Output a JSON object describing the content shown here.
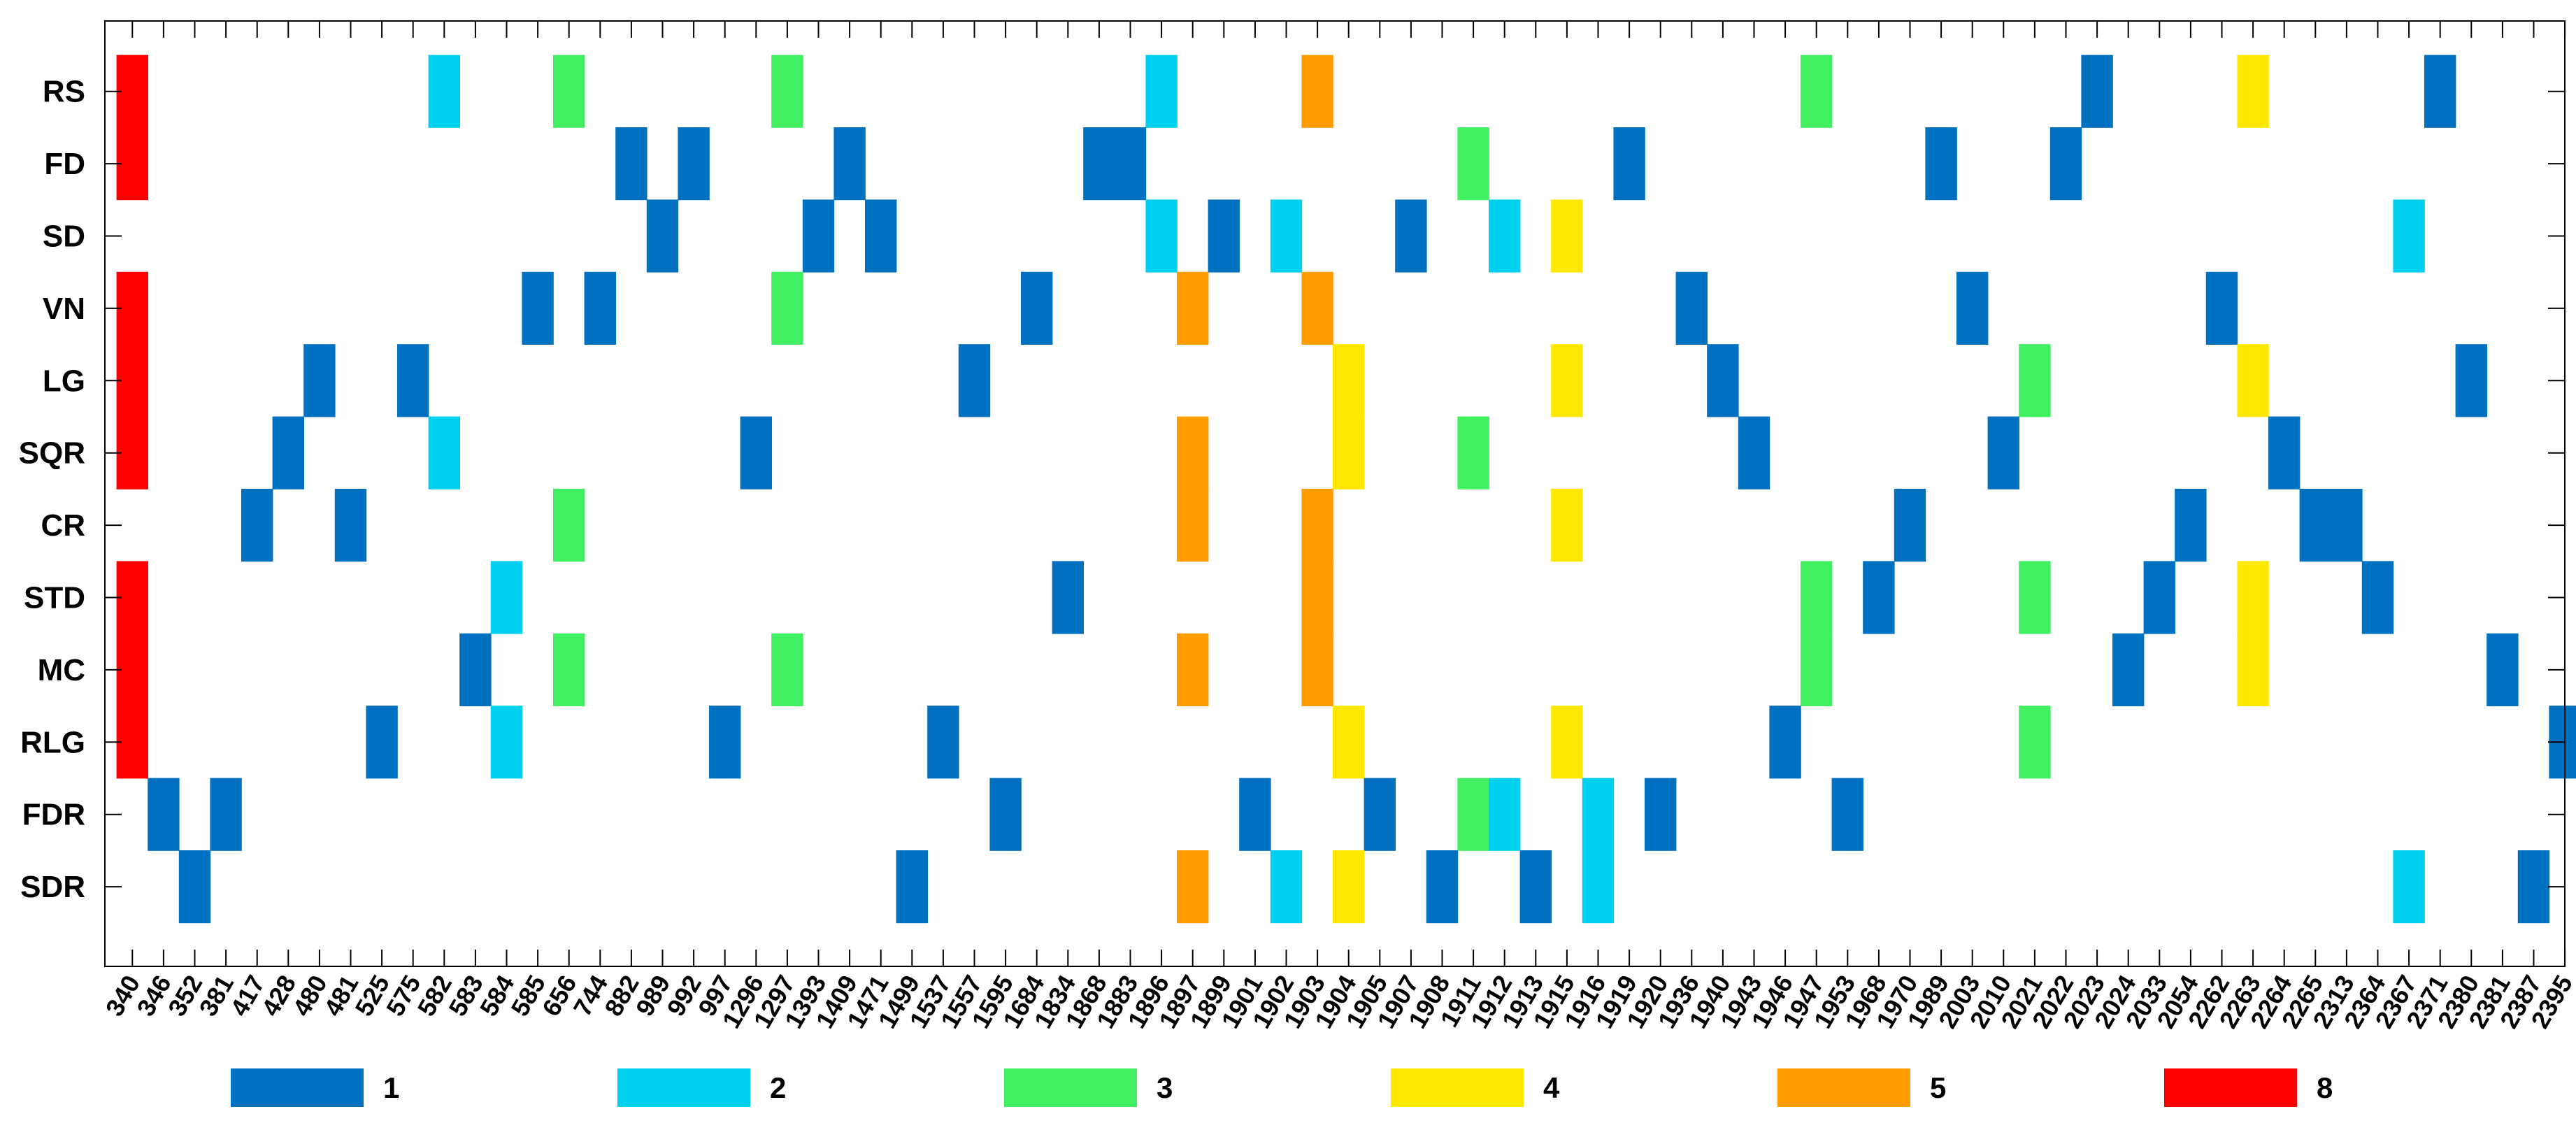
{
  "chart_data": {
    "type": "heatmap",
    "title": "",
    "xlabel": "",
    "ylabel": "",
    "x_categories": [
      "340",
      "346",
      "352",
      "381",
      "417",
      "428",
      "480",
      "481",
      "525",
      "575",
      "582",
      "583",
      "584",
      "585",
      "656",
      "744",
      "882",
      "989",
      "992",
      "997",
      "1296",
      "1297",
      "1393",
      "1409",
      "1471",
      "1499",
      "1537",
      "1557",
      "1595",
      "1684",
      "1834",
      "1868",
      "1883",
      "1896",
      "1897",
      "1899",
      "1901",
      "1902",
      "1903",
      "1904",
      "1905",
      "1907",
      "1908",
      "1911",
      "1912",
      "1913",
      "1915",
      "1916",
      "1919",
      "1920",
      "1936",
      "1940",
      "1943",
      "1946",
      "1947",
      "1953",
      "1968",
      "1970",
      "1989",
      "2003",
      "2010",
      "2021",
      "2022",
      "2023",
      "2024",
      "2033",
      "2054",
      "2262",
      "2263",
      "2264",
      "2265",
      "2313",
      "2364",
      "2367",
      "2371",
      "2380",
      "2381",
      "2387",
      "2395"
    ],
    "y_categories": [
      "RS",
      "FD",
      "SD",
      "VN",
      "LG",
      "SQR",
      "CR",
      "STD",
      "MC",
      "RLG",
      "FDR",
      "SDR"
    ],
    "colormap": {
      "1": "#0070C0",
      "2": "#00D0F0",
      "3": "#40F060",
      "4": "#FFE800",
      "5": "#FF9C00",
      "8": "#FF0000"
    },
    "legend": [
      "1",
      "2",
      "3",
      "4",
      "5",
      "8"
    ],
    "legend_placement": "bottom",
    "cells": [
      {
        "y": "RS",
        "x": "340",
        "v": 8
      },
      {
        "y": "RS",
        "x": "582",
        "v": 2
      },
      {
        "y": "RS",
        "x": "656",
        "v": 3
      },
      {
        "y": "RS",
        "x": "1297",
        "v": 3
      },
      {
        "y": "RS",
        "x": "1896",
        "v": 2
      },
      {
        "y": "RS",
        "x": "1903",
        "v": 5
      },
      {
        "y": "RS",
        "x": "1947",
        "v": 3
      },
      {
        "y": "RS",
        "x": "2023",
        "v": 1
      },
      {
        "y": "RS",
        "x": "2263",
        "v": 4
      },
      {
        "y": "RS",
        "x": "2371",
        "v": 1
      },
      {
        "y": "FD",
        "x": "340",
        "v": 8
      },
      {
        "y": "FD",
        "x": "882",
        "v": 1
      },
      {
        "y": "FD",
        "x": "992",
        "v": 1
      },
      {
        "y": "FD",
        "x": "1409",
        "v": 1
      },
      {
        "y": "FD",
        "x": "1868",
        "v": 1
      },
      {
        "y": "FD",
        "x": "1883",
        "v": 1
      },
      {
        "y": "FD",
        "x": "1911",
        "v": 3
      },
      {
        "y": "FD",
        "x": "1919",
        "v": 1
      },
      {
        "y": "FD",
        "x": "1989",
        "v": 1
      },
      {
        "y": "FD",
        "x": "2022",
        "v": 1
      },
      {
        "y": "SD",
        "x": "989",
        "v": 1
      },
      {
        "y": "SD",
        "x": "1393",
        "v": 1
      },
      {
        "y": "SD",
        "x": "1471",
        "v": 1
      },
      {
        "y": "SD",
        "x": "1896",
        "v": 2
      },
      {
        "y": "SD",
        "x": "1899",
        "v": 1
      },
      {
        "y": "SD",
        "x": "1902",
        "v": 2
      },
      {
        "y": "SD",
        "x": "1907",
        "v": 1
      },
      {
        "y": "SD",
        "x": "1912",
        "v": 2
      },
      {
        "y": "SD",
        "x": "1915",
        "v": 4
      },
      {
        "y": "SD",
        "x": "2367",
        "v": 2
      },
      {
        "y": "VN",
        "x": "340",
        "v": 8
      },
      {
        "y": "VN",
        "x": "585",
        "v": 1
      },
      {
        "y": "VN",
        "x": "744",
        "v": 1
      },
      {
        "y": "VN",
        "x": "1297",
        "v": 3
      },
      {
        "y": "VN",
        "x": "1684",
        "v": 1
      },
      {
        "y": "VN",
        "x": "1897",
        "v": 5
      },
      {
        "y": "VN",
        "x": "1903",
        "v": 5
      },
      {
        "y": "VN",
        "x": "1936",
        "v": 1
      },
      {
        "y": "VN",
        "x": "2003",
        "v": 1
      },
      {
        "y": "VN",
        "x": "2262",
        "v": 1
      },
      {
        "y": "LG",
        "x": "340",
        "v": 8
      },
      {
        "y": "LG",
        "x": "480",
        "v": 1
      },
      {
        "y": "LG",
        "x": "575",
        "v": 1
      },
      {
        "y": "LG",
        "x": "1557",
        "v": 1
      },
      {
        "y": "LG",
        "x": "1904",
        "v": 4
      },
      {
        "y": "LG",
        "x": "1915",
        "v": 4
      },
      {
        "y": "LG",
        "x": "1940",
        "v": 1
      },
      {
        "y": "LG",
        "x": "2021",
        "v": 3
      },
      {
        "y": "LG",
        "x": "2263",
        "v": 4
      },
      {
        "y": "LG",
        "x": "2380",
        "v": 1
      },
      {
        "y": "SQR",
        "x": "340",
        "v": 8
      },
      {
        "y": "SQR",
        "x": "428",
        "v": 1
      },
      {
        "y": "SQR",
        "x": "582",
        "v": 2
      },
      {
        "y": "SQR",
        "x": "1296",
        "v": 1
      },
      {
        "y": "SQR",
        "x": "1897",
        "v": 5
      },
      {
        "y": "SQR",
        "x": "1904",
        "v": 4
      },
      {
        "y": "SQR",
        "x": "1911",
        "v": 3
      },
      {
        "y": "SQR",
        "x": "1943",
        "v": 1
      },
      {
        "y": "SQR",
        "x": "2010",
        "v": 1
      },
      {
        "y": "SQR",
        "x": "2264",
        "v": 1
      },
      {
        "y": "CR",
        "x": "417",
        "v": 1
      },
      {
        "y": "CR",
        "x": "481",
        "v": 1
      },
      {
        "y": "CR",
        "x": "656",
        "v": 3
      },
      {
        "y": "CR",
        "x": "1897",
        "v": 5
      },
      {
        "y": "CR",
        "x": "1903",
        "v": 5
      },
      {
        "y": "CR",
        "x": "1915",
        "v": 4
      },
      {
        "y": "CR",
        "x": "1970",
        "v": 1
      },
      {
        "y": "CR",
        "x": "2054",
        "v": 1
      },
      {
        "y": "CR",
        "x": "2265",
        "v": 1
      },
      {
        "y": "CR",
        "x": "2313",
        "v": 1
      },
      {
        "y": "STD",
        "x": "340",
        "v": 8
      },
      {
        "y": "STD",
        "x": "584",
        "v": 2
      },
      {
        "y": "STD",
        "x": "1834",
        "v": 1
      },
      {
        "y": "STD",
        "x": "1903",
        "v": 5
      },
      {
        "y": "STD",
        "x": "1947",
        "v": 3
      },
      {
        "y": "STD",
        "x": "1968",
        "v": 1
      },
      {
        "y": "STD",
        "x": "2021",
        "v": 3
      },
      {
        "y": "STD",
        "x": "2033",
        "v": 1
      },
      {
        "y": "STD",
        "x": "2263",
        "v": 4
      },
      {
        "y": "STD",
        "x": "2364",
        "v": 1
      },
      {
        "y": "MC",
        "x": "340",
        "v": 8
      },
      {
        "y": "MC",
        "x": "583",
        "v": 1
      },
      {
        "y": "MC",
        "x": "656",
        "v": 3
      },
      {
        "y": "MC",
        "x": "1297",
        "v": 3
      },
      {
        "y": "MC",
        "x": "1897",
        "v": 5
      },
      {
        "y": "MC",
        "x": "1903",
        "v": 5
      },
      {
        "y": "MC",
        "x": "1947",
        "v": 3
      },
      {
        "y": "MC",
        "x": "2024",
        "v": 1
      },
      {
        "y": "MC",
        "x": "2263",
        "v": 4
      },
      {
        "y": "MC",
        "x": "2381",
        "v": 1
      },
      {
        "y": "RLG",
        "x": "340",
        "v": 8
      },
      {
        "y": "RLG",
        "x": "525",
        "v": 1
      },
      {
        "y": "RLG",
        "x": "584",
        "v": 2
      },
      {
        "y": "RLG",
        "x": "997",
        "v": 1
      },
      {
        "y": "RLG",
        "x": "1537",
        "v": 1
      },
      {
        "y": "RLG",
        "x": "1904",
        "v": 4
      },
      {
        "y": "RLG",
        "x": "1915",
        "v": 4
      },
      {
        "y": "RLG",
        "x": "1946",
        "v": 1
      },
      {
        "y": "RLG",
        "x": "2021",
        "v": 3
      },
      {
        "y": "RLG",
        "x": "2395",
        "v": 1
      },
      {
        "y": "FDR",
        "x": "346",
        "v": 1
      },
      {
        "y": "FDR",
        "x": "381",
        "v": 1
      },
      {
        "y": "FDR",
        "x": "1595",
        "v": 1
      },
      {
        "y": "FDR",
        "x": "1901",
        "v": 1
      },
      {
        "y": "FDR",
        "x": "1905",
        "v": 1
      },
      {
        "y": "FDR",
        "x": "1911",
        "v": 3
      },
      {
        "y": "FDR",
        "x": "1912",
        "v": 2
      },
      {
        "y": "FDR",
        "x": "1916",
        "v": 2
      },
      {
        "y": "FDR",
        "x": "1920",
        "v": 1
      },
      {
        "y": "FDR",
        "x": "1953",
        "v": 1
      },
      {
        "y": "SDR",
        "x": "352",
        "v": 1
      },
      {
        "y": "SDR",
        "x": "1499",
        "v": 1
      },
      {
        "y": "SDR",
        "x": "1897",
        "v": 5
      },
      {
        "y": "SDR",
        "x": "1902",
        "v": 2
      },
      {
        "y": "SDR",
        "x": "1904",
        "v": 4
      },
      {
        "y": "SDR",
        "x": "1908",
        "v": 1
      },
      {
        "y": "SDR",
        "x": "1913",
        "v": 1
      },
      {
        "y": "SDR",
        "x": "1916",
        "v": 2
      },
      {
        "y": "SDR",
        "x": "2367",
        "v": 2
      },
      {
        "y": "SDR",
        "x": "2387",
        "v": 1
      }
    ]
  }
}
